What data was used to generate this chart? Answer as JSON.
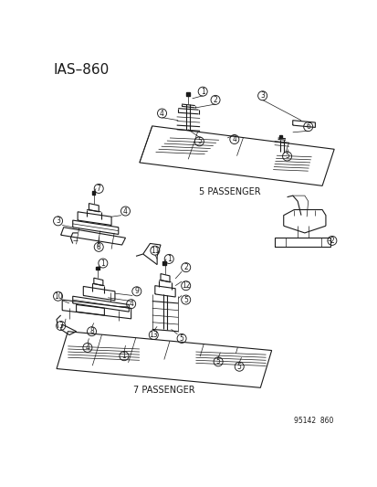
{
  "title": "IAS–860",
  "subtitle1": "5 PASSENGER",
  "subtitle2": "7 PASSENGER",
  "ref_number": "95142  860",
  "bg_color": "#ffffff",
  "line_color": "#1a1a1a",
  "title_fontsize": 11,
  "label_fontsize": 6.5,
  "circle_fontsize": 5.5,
  "fig_width": 4.14,
  "fig_height": 5.33,
  "dpi": 100
}
